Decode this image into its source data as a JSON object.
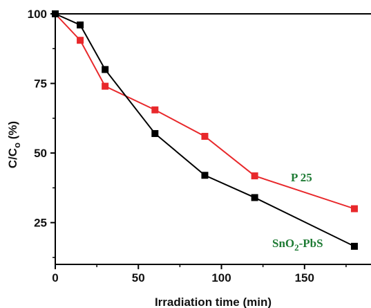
{
  "chart_data": {
    "type": "line",
    "xlabel": "Irradiation time (min)",
    "ylabel_main": "C/C",
    "ylabel_sub": "o",
    "ylabel_unit": " (%)",
    "xlim": [
      0,
      190
    ],
    "ylim": [
      10,
      100
    ],
    "x_ticks": [
      0,
      50,
      100,
      150
    ],
    "x_tick_labels": [
      "0",
      "50",
      "100",
      "150"
    ],
    "y_ticks": [
      25,
      50,
      75,
      100
    ],
    "y_tick_labels": [
      "25",
      "50",
      "75",
      "100"
    ],
    "x_minor_step": 25,
    "y_minor_step": 12.5,
    "grid": false,
    "series": [
      {
        "name_main": "SnO",
        "name_sub": "2",
        "name_rest": "-PbS",
        "color": "#000000",
        "label_color": "#1e7b34",
        "x": [
          0,
          15,
          30,
          60,
          90,
          120,
          180
        ],
        "y": [
          100,
          96,
          80,
          57,
          42,
          34,
          16.5
        ]
      },
      {
        "name_main": "P 25",
        "name_sub": "",
        "name_rest": "",
        "color": "#e8282b",
        "label_color": "#1e7b34",
        "x": [
          0,
          15,
          30,
          60,
          90,
          120,
          180
        ],
        "y": [
          100,
          90.5,
          74,
          65.5,
          56,
          41.8,
          30
        ]
      }
    ]
  }
}
